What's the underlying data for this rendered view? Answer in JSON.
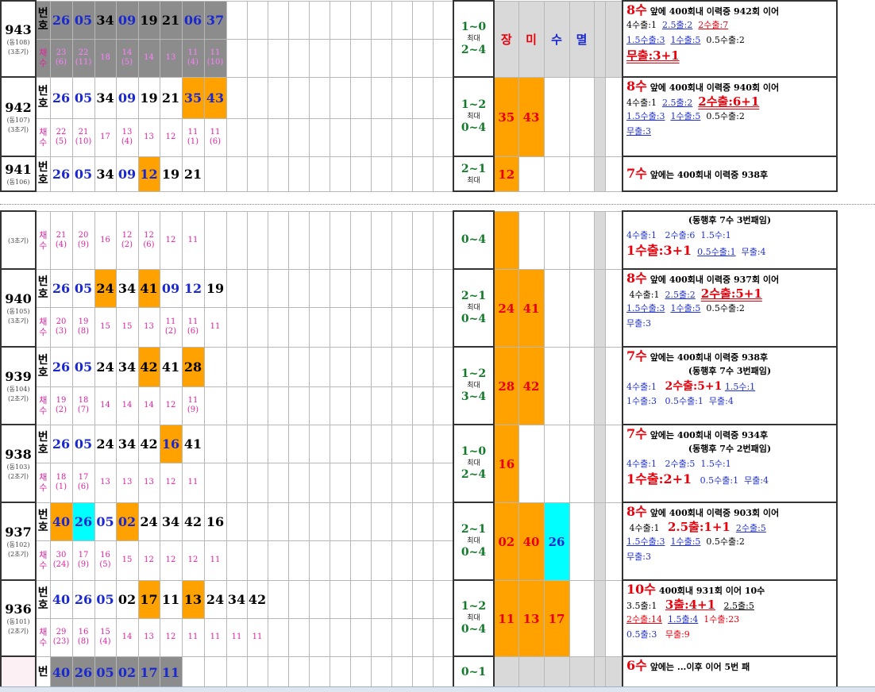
{
  "side_headers": {
    "c1": "장",
    "c2": "미",
    "c3": "수",
    "c4": "멸"
  },
  "label": {
    "num_top": "번",
    "num_bot": "호",
    "cnt_top": "채",
    "cnt_bot": "수"
  },
  "max_label": "최대",
  "row_943": {
    "round": "943",
    "sub1": "(동108)",
    "sub2": "(3초기)",
    "n": [
      "26",
      "05",
      "34",
      "09",
      "19",
      "21",
      "06",
      "37"
    ],
    "c": [
      [
        "23",
        "(6)"
      ],
      [
        "22",
        "(11)"
      ],
      [
        "18",
        ""
      ],
      [
        "14",
        "(5)"
      ],
      [
        "14",
        ""
      ],
      [
        "13",
        ""
      ],
      [
        "11",
        "(4)"
      ],
      [
        "11",
        "(10)"
      ]
    ],
    "pat1": "1~0",
    "pat2": "2~4",
    "note1a": "8수",
    "note1b": " 앞에 400회내 이력중 942회 이어",
    "note2": [
      "4수출:1",
      "2.5출:2",
      "2수출:7"
    ],
    "note3": [
      "1.5수출:3",
      "1수출:5",
      "0.5수출:2"
    ],
    "note4": "무출:3+1"
  },
  "row_942": {
    "round": "942",
    "sub1": "(동107)",
    "sub2": "(3초기)",
    "n": [
      "26",
      "05",
      "34",
      "09",
      "19",
      "21",
      "35",
      "43"
    ],
    "c": [
      [
        "22",
        "(5)"
      ],
      [
        "21",
        "(10)"
      ],
      [
        "17",
        ""
      ],
      [
        "13",
        "(4)"
      ],
      [
        "13",
        ""
      ],
      [
        "12",
        ""
      ],
      [
        "11",
        "(1)"
      ],
      [
        "11",
        "(6)"
      ]
    ],
    "pat1": "1~2",
    "pat2": "0~4",
    "s1": "35",
    "s2": "43",
    "note1a": "8수",
    "note1b": " 앞에 400회내 이력중 940회 이어",
    "note2": [
      "4수출:1",
      "2.5출:2",
      "2수출:6+1"
    ],
    "note3": [
      "1.5수출:3",
      "1수출:5",
      "0.5수출:2"
    ],
    "note4": "무출:3"
  },
  "row_941": {
    "round": "941",
    "sub1": "(동106)",
    "n": [
      "26",
      "05",
      "34",
      "09",
      "12",
      "19",
      "21"
    ],
    "pat1": "2~1",
    "s1": "12",
    "note1a": "7수",
    "note1b": " 앞에는 400회내 이력중 938후"
  },
  "row_cont": {
    "sub": "(3초기)",
    "c": [
      [
        "21",
        "(4)"
      ],
      [
        "20",
        "(9)"
      ],
      [
        "16",
        ""
      ],
      [
        "12",
        "(2)"
      ],
      [
        "12",
        "(6)"
      ],
      [
        "12",
        ""
      ],
      [
        "11",
        ""
      ]
    ],
    "pat": "0~4",
    "note1": "(동행후  7수  3번패임)",
    "note2": [
      "4수출:1",
      "2수출:6",
      "1.5수:1"
    ],
    "note3": [
      "1수출:3+1",
      "0.5수출:1",
      "무출:4"
    ]
  },
  "row_940": {
    "round": "940",
    "sub1": "(동105)",
    "sub2": "(3초기)",
    "n": [
      "26",
      "05",
      "24",
      "34",
      "41",
      "09",
      "12",
      "19"
    ],
    "c": [
      [
        "20",
        "(3)"
      ],
      [
        "19",
        "(8)"
      ],
      [
        "15",
        ""
      ],
      [
        "15",
        ""
      ],
      [
        "13",
        ""
      ],
      [
        "11",
        "(2)"
      ],
      [
        "11",
        "(6)"
      ],
      [
        "11",
        ""
      ]
    ],
    "pat1": "2~1",
    "pat2": "0~4",
    "s1": "24",
    "s2": "41",
    "note1a": "8수",
    "note1b": " 앞에 400회내 이력중 937회 이어",
    "note2": [
      "4수출:1",
      "2.5출:2",
      "2수출:5+1"
    ],
    "note3": [
      "1.5수출:3",
      "1수출:5",
      "0.5수출:2"
    ],
    "note4": "무출:3"
  },
  "row_939": {
    "round": "939",
    "sub1": "(동104)",
    "sub2": "(2초기)",
    "n": [
      "26",
      "05",
      "24",
      "34",
      "42",
      "41",
      "28"
    ],
    "c": [
      [
        "19",
        "(2)"
      ],
      [
        "18",
        "(7)"
      ],
      [
        "14",
        ""
      ],
      [
        "14",
        ""
      ],
      [
        "14",
        ""
      ],
      [
        "12",
        ""
      ],
      [
        "11",
        "(9)"
      ]
    ],
    "pat1": "1~2",
    "pat2": "3~4",
    "s1": "28",
    "s2": "42",
    "note1a": "7수",
    "note1b": " 앞에는 400회내 이력중 938후",
    "note2": "(동행후  7수  3번패임)",
    "note3": [
      "4수출:1",
      "2수출:5+1",
      "1.5수:1"
    ],
    "note4": [
      "1수출:3",
      "0.5수출:1",
      "무출:4"
    ]
  },
  "row_938": {
    "round": "938",
    "sub1": "(동103)",
    "sub2": "(2초기)",
    "n": [
      "26",
      "05",
      "24",
      "34",
      "42",
      "16",
      "41"
    ],
    "c": [
      [
        "18",
        "(1)"
      ],
      [
        "17",
        "(6)"
      ],
      [
        "13",
        ""
      ],
      [
        "13",
        ""
      ],
      [
        "13",
        ""
      ],
      [
        "12",
        ""
      ],
      [
        "11",
        ""
      ]
    ],
    "pat1": "1~0",
    "pat2": "2~4",
    "s1": "16",
    "note1a": "7수",
    "note1b": " 앞에는 400회내 이력중 934후",
    "note2": "(동행후  7수  2번패임)",
    "note3": [
      "4수출:1",
      "2수출:5",
      "1.5수:1"
    ],
    "note4": [
      "1수출:2+1",
      "0.5수출:1",
      "무출:4"
    ]
  },
  "row_937": {
    "round": "937",
    "sub1": "(동102)",
    "sub2": "(2초기)",
    "n": [
      "40",
      "26",
      "05",
      "02",
      "24",
      "34",
      "42",
      "16"
    ],
    "c": [
      [
        "30",
        "(24)"
      ],
      [
        "17",
        "(9)"
      ],
      [
        "16",
        "(5)"
      ],
      [
        "15",
        ""
      ],
      [
        "12",
        ""
      ],
      [
        "12",
        ""
      ],
      [
        "12",
        ""
      ],
      [
        "11",
        ""
      ]
    ],
    "pat1": "2~1",
    "pat2": "0~4",
    "s1": "02",
    "s2": "40",
    "s3": "26",
    "note1a": "8수",
    "note1b": " 앞에 400회내 이력중 903회 이어",
    "note2": [
      "4수출:1",
      "2.5출:1+1",
      "2수출:5"
    ],
    "note3": [
      "1.5수출:3",
      "1수출:5",
      "0.5수출:2"
    ],
    "note4": "무출:3"
  },
  "row_936": {
    "round": "936",
    "sub1": "(동101)",
    "sub2": "(2초기)",
    "n": [
      "40",
      "26",
      "05",
      "02",
      "17",
      "11",
      "13",
      "24",
      "34",
      "42"
    ],
    "c": [
      [
        "29",
        "(23)"
      ],
      [
        "16",
        "(8)"
      ],
      [
        "15",
        "(4)"
      ],
      [
        "14",
        ""
      ],
      [
        "13",
        ""
      ],
      [
        "12",
        ""
      ],
      [
        "11",
        ""
      ],
      [
        "11",
        ""
      ],
      [
        "11",
        ""
      ],
      [
        "11",
        ""
      ]
    ],
    "pat1": "1~2",
    "pat2": "0~4",
    "s1": "11",
    "s2": "13",
    "s3": "17",
    "note1a": "10수",
    "note1b": " 400회내 931회 이어  10수",
    "note2": [
      "3.5출:1",
      "3출:4+1",
      "2.5출:5"
    ],
    "note3": [
      "2수출:14",
      "1.5출:4",
      "1수출:23"
    ],
    "note4": [
      "0.5출:3",
      "무출:9"
    ]
  },
  "row_935": {
    "n": [
      "40",
      "26",
      "05",
      "02",
      "17",
      "11"
    ],
    "pat1": "0~1",
    "note1a": "6수",
    "note1b": " 앞에는 ...이후 이어 5번 패"
  }
}
